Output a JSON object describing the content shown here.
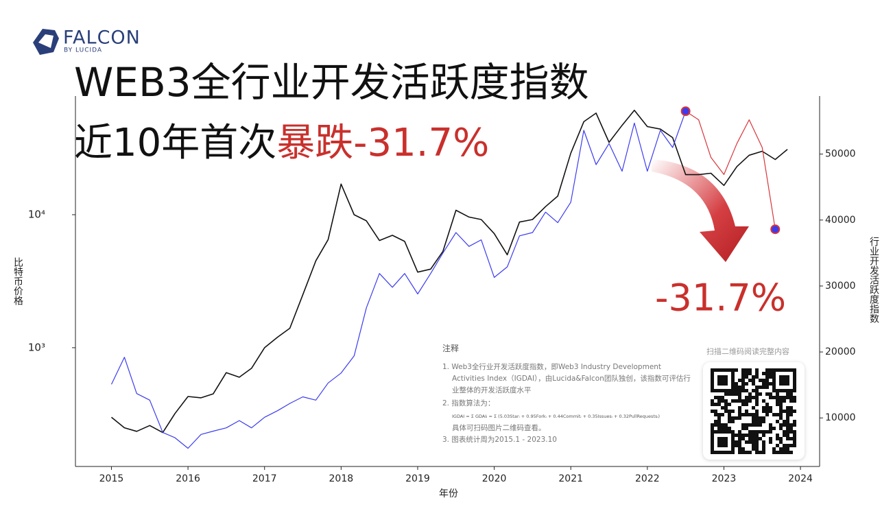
{
  "logo": {
    "name": "FALCON",
    "tagline": "BY LUCIDA"
  },
  "chart_data": {
    "type": "line",
    "title": "WEB3全行业开发活跃度指数",
    "subtitle": "近10年首次",
    "subtitle_highlight": "暴跌-31.7%",
    "annotation": "-31.7%",
    "xlabel": "年份",
    "ylabel": "比特币价格",
    "y2label": "行业开发活跃度指数",
    "ylog": true,
    "x": [
      2015.0,
      2015.17,
      2015.33,
      2015.5,
      2015.67,
      2015.83,
      2016.0,
      2016.17,
      2016.33,
      2016.5,
      2016.67,
      2016.83,
      2017.0,
      2017.17,
      2017.33,
      2017.5,
      2017.67,
      2017.83,
      2018.0,
      2018.17,
      2018.33,
      2018.5,
      2018.67,
      2018.83,
      2019.0,
      2019.17,
      2019.33,
      2019.5,
      2019.67,
      2019.83,
      2020.0,
      2020.17,
      2020.33,
      2020.5,
      2020.67,
      2020.83,
      2021.0,
      2021.17,
      2021.33,
      2021.5,
      2021.67,
      2021.83,
      2022.0,
      2022.17,
      2022.33,
      2022.5,
      2022.67,
      2022.83,
      2023.0,
      2023.17,
      2023.33,
      2023.5,
      2023.67,
      2023.83
    ],
    "series": [
      {
        "color": "#111111",
        "values": [
          300,
          250,
          235,
          260,
          230,
          320,
          430,
          420,
          450,
          650,
          600,
          700,
          1000,
          1200,
          1400,
          2500,
          4500,
          6500,
          17000,
          10000,
          9000,
          6400,
          7000,
          6300,
          3700,
          3900,
          5300,
          10800,
          9600,
          9200,
          7200,
          5000,
          8800,
          9200,
          11500,
          13800,
          29000,
          50000,
          58000,
          35000,
          47000,
          61000,
          46000,
          44000,
          38000,
          20000,
          20000,
          20500,
          16600,
          23000,
          28000,
          30000,
          26000,
          31000
        ]
      },
      {
        "axis": "y2",
        "color": "#3b3bf0",
        "values": [
          15100,
          19200,
          13700,
          12700,
          7800,
          7000,
          5400,
          7500,
          8000,
          8500,
          9600,
          8500,
          10100,
          11100,
          12200,
          13200,
          12700,
          15300,
          16800,
          19400,
          26700,
          31900,
          29800,
          31900,
          28800,
          31900,
          35000,
          38100,
          36000,
          37000,
          31300,
          32900,
          37600,
          38100,
          41200,
          39600,
          42700,
          53600,
          48400,
          51600,
          47400,
          54700,
          47400,
          53600,
          51000,
          56500,
          null,
          null,
          null,
          null,
          null,
          null,
          null,
          null
        ]
      },
      {
        "axis": "y2",
        "color": "#d8343a",
        "markers": [
          45,
          52
        ],
        "values": [
          null,
          null,
          null,
          null,
          null,
          null,
          null,
          null,
          null,
          null,
          null,
          null,
          null,
          null,
          null,
          null,
          null,
          null,
          null,
          null,
          null,
          null,
          null,
          null,
          null,
          null,
          null,
          null,
          null,
          null,
          null,
          null,
          null,
          null,
          null,
          null,
          null,
          null,
          null,
          null,
          null,
          null,
          null,
          null,
          null,
          56500,
          55200,
          49500,
          46900,
          51600,
          55200,
          51000,
          38600,
          null
        ]
      }
    ],
    "xlim": [
      2014.53,
      2024.25
    ],
    "xticks": [
      2015,
      2016,
      2017,
      2018,
      2019,
      2020,
      2021,
      2022,
      2023,
      2024
    ],
    "ylim": [
      128,
      78000
    ],
    "yticks": [
      {
        "value": 1000,
        "label": "10³"
      },
      {
        "value": 10000,
        "label": "10⁴"
      }
    ],
    "y2lim": [
      2640,
      58800
    ],
    "y2ticks": [
      10000,
      20000,
      30000,
      40000,
      50000
    ]
  },
  "notes": {
    "title": "注释",
    "items": [
      "1. Web3全行业开发活跃度指数，即Web3 Industry Development Activities Index（IGDAI），由Lucida&Falcon团队独创，该指数可评估行业整体的开发活跃度水平",
      "2. 指数算法为：",
      "3. 图表统计周为2015.1 - 2023.10"
    ],
    "formula": "IGDAI = Σ GDAIᵢ = Σ (5.03Starᵢ + 0.95Forkᵢ + 0.44Commitᵢ + 0.35Issuesᵢ + 0.32PullRequestsᵢ)",
    "formula_note": "具体可扫码图片二维码查看。",
    "qr_caption": "扫描二维码阅读完整内容"
  }
}
